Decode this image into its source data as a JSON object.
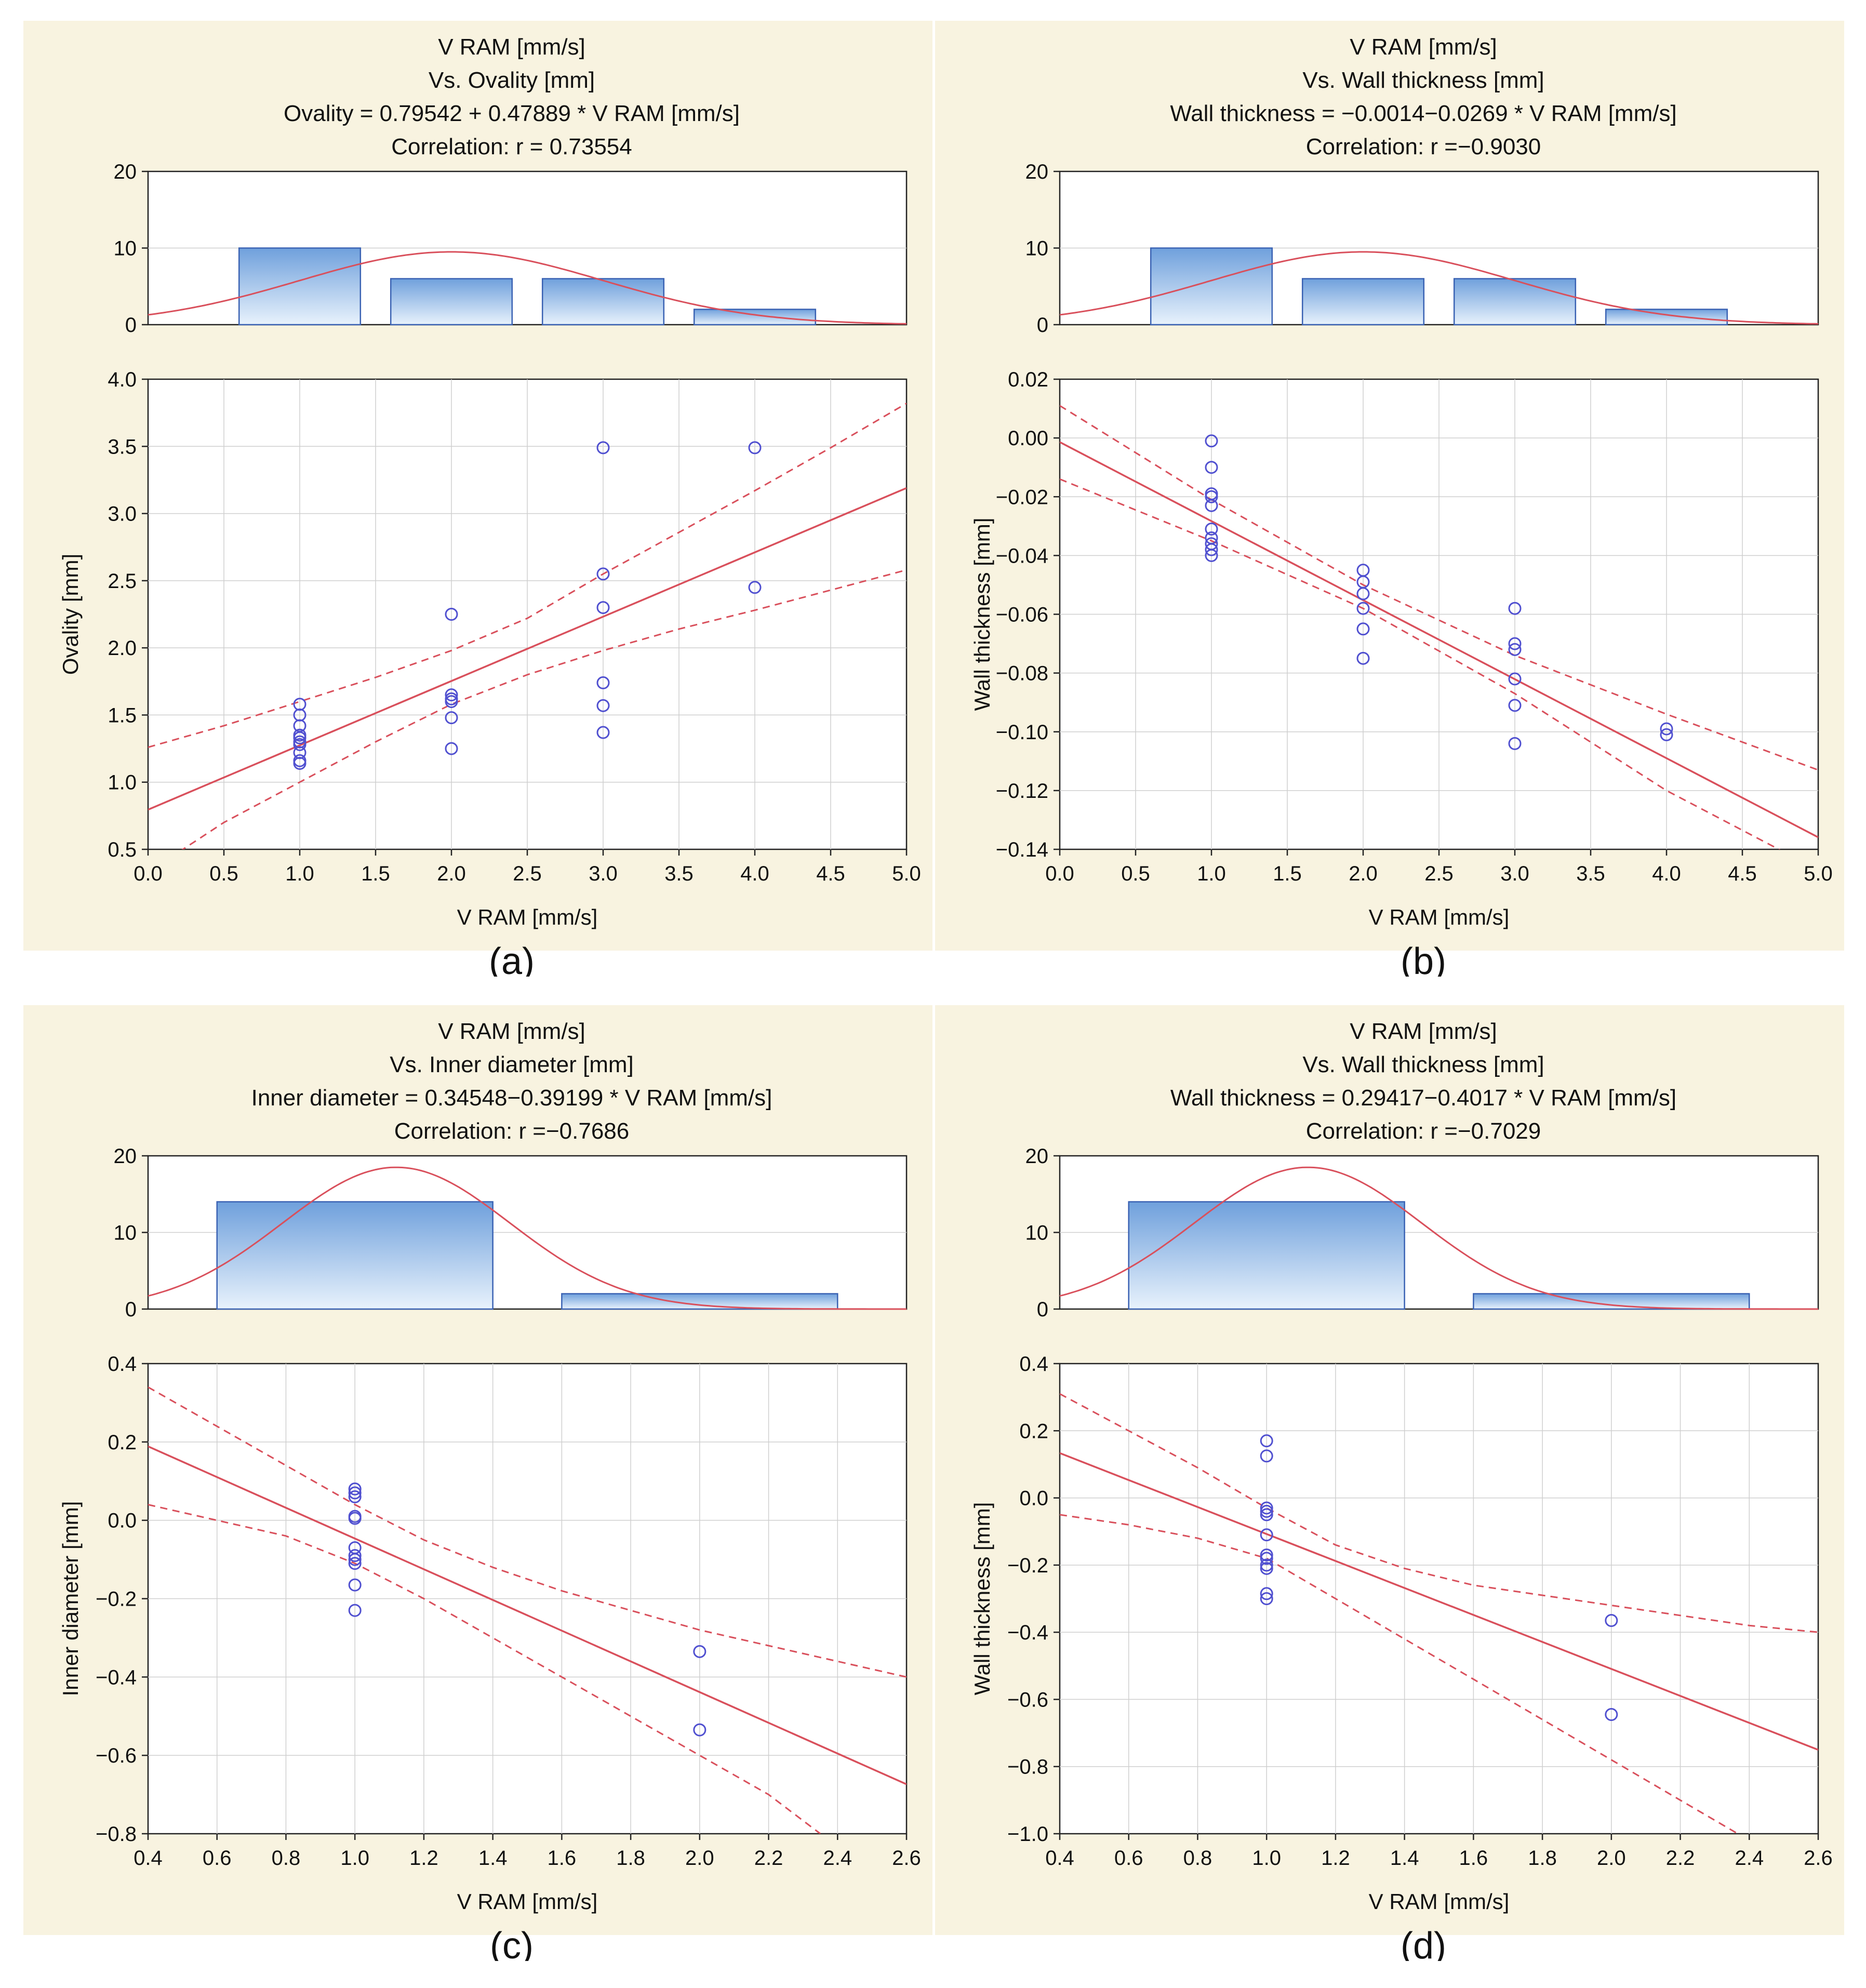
{
  "colors": {
    "background": "#f8f3e0",
    "fit": "#d9505c",
    "points": "#5050d0",
    "bar_stroke": "#3a62b3",
    "bar_top": "#6fa0dc",
    "bar_bottom": "#e8f2fc"
  },
  "chart_data": [
    {
      "id": "a",
      "type": "scatter",
      "panel_label": "(a)",
      "title_lines": [
        "V RAM [mm/s]",
        "Vs. Ovality [mm]",
        "Ovality = 0.79542 + 0.47889 * V RAM [mm/s]",
        "Correlation: r =  0.73554"
      ],
      "xlabel": "V RAM [mm/s]",
      "ylabel": "Ovality [mm]",
      "xlim": [
        0,
        5
      ],
      "ylim": [
        0.5,
        4.0
      ],
      "x_ticks": [
        "0.0",
        "0.5",
        "1.0",
        "1.5",
        "2.0",
        "2.5",
        "3.0",
        "3.5",
        "4.0",
        "4.5",
        "5.0"
      ],
      "y_ticks": [
        "0.5",
        "1.0",
        "1.5",
        "2.0",
        "2.5",
        "3.0",
        "3.5",
        "4.0"
      ],
      "hist": {
        "ylim": [
          0,
          20
        ],
        "y_ticks": [
          "0",
          "10",
          "20"
        ],
        "bars": [
          {
            "x0": 0.6,
            "x1": 1.4,
            "count": 10
          },
          {
            "x0": 1.6,
            "x1": 2.4,
            "count": 6
          },
          {
            "x0": 2.6,
            "x1": 3.4,
            "count": 6
          },
          {
            "x0": 3.6,
            "x1": 4.4,
            "count": 2
          }
        ],
        "normal": {
          "mean": 2.0,
          "sd": 1.0,
          "peak": 9.5
        }
      },
      "fit": {
        "intercept": 0.79542,
        "slope": 0.47889
      },
      "ci": {
        "upper": [
          [
            0,
            1.26
          ],
          [
            0.5,
            1.42
          ],
          [
            1,
            1.6
          ],
          [
            1.5,
            1.78
          ],
          [
            2,
            1.98
          ],
          [
            2.5,
            2.22
          ],
          [
            3,
            2.55
          ],
          [
            3.5,
            2.86
          ],
          [
            4,
            3.17
          ],
          [
            4.5,
            3.49
          ],
          [
            5,
            3.82
          ]
        ],
        "lower": [
          [
            0,
            0.33
          ],
          [
            0.5,
            0.7
          ],
          [
            1,
            1.0
          ],
          [
            1.5,
            1.3
          ],
          [
            2,
            1.58
          ],
          [
            2.5,
            1.8
          ],
          [
            3,
            1.98
          ],
          [
            3.5,
            2.14
          ],
          [
            4,
            2.28
          ],
          [
            4.5,
            2.43
          ],
          [
            5,
            2.58
          ]
        ]
      },
      "points": [
        [
          1,
          1.14
        ],
        [
          1,
          1.16
        ],
        [
          1,
          1.22
        ],
        [
          1,
          1.28
        ],
        [
          1,
          1.3
        ],
        [
          1,
          1.33
        ],
        [
          1,
          1.35
        ],
        [
          1,
          1.42
        ],
        [
          1,
          1.5
        ],
        [
          1,
          1.58
        ],
        [
          2,
          1.25
        ],
        [
          2,
          1.48
        ],
        [
          2,
          1.6
        ],
        [
          2,
          1.62
        ],
        [
          2,
          1.65
        ],
        [
          2,
          2.25
        ],
        [
          3,
          1.37
        ],
        [
          3,
          1.57
        ],
        [
          3,
          1.74
        ],
        [
          3,
          2.3
        ],
        [
          3,
          2.55
        ],
        [
          3,
          3.49
        ],
        [
          4,
          2.45
        ],
        [
          4,
          3.49
        ]
      ]
    },
    {
      "id": "b",
      "type": "scatter",
      "panel_label": "(b)",
      "title_lines": [
        "V RAM [mm/s]",
        "Vs. Wall thickness [mm]",
        "Wall thickness = −0.0014−0.0269 * V RAM [mm/s]",
        "Correlation: r =−0.9030"
      ],
      "xlabel": "V RAM [mm/s]",
      "ylabel": "Wall thickness [mm]",
      "xlim": [
        0,
        5
      ],
      "ylim": [
        -0.14,
        0.02
      ],
      "x_ticks": [
        "0.0",
        "0.5",
        "1.0",
        "1.5",
        "2.0",
        "2.5",
        "3.0",
        "3.5",
        "4.0",
        "4.5",
        "5.0"
      ],
      "y_ticks": [
        "−0.14",
        "−0.12",
        "−0.10",
        "−0.08",
        "−0.06",
        "−0.04",
        "−0.02",
        "0.00",
        "0.02"
      ],
      "hist": {
        "ylim": [
          0,
          20
        ],
        "y_ticks": [
          "0",
          "10",
          "20"
        ],
        "bars": [
          {
            "x0": 0.6,
            "x1": 1.4,
            "count": 10
          },
          {
            "x0": 1.6,
            "x1": 2.4,
            "count": 6
          },
          {
            "x0": 2.6,
            "x1": 3.4,
            "count": 6
          },
          {
            "x0": 3.6,
            "x1": 4.4,
            "count": 2
          }
        ],
        "normal": {
          "mean": 2.0,
          "sd": 1.0,
          "peak": 9.5
        }
      },
      "fit": {
        "intercept": -0.0014,
        "slope": -0.0269
      },
      "ci": {
        "upper": [
          [
            0,
            0.011
          ],
          [
            1,
            -0.021
          ],
          [
            2,
            -0.05
          ],
          [
            3,
            -0.074
          ],
          [
            4,
            -0.094
          ],
          [
            5,
            -0.113
          ]
        ],
        "lower": [
          [
            0,
            -0.014
          ],
          [
            1,
            -0.035
          ],
          [
            2,
            -0.058
          ],
          [
            3,
            -0.087
          ],
          [
            4,
            -0.12
          ],
          [
            5,
            -0.147
          ]
        ]
      },
      "points": [
        [
          1,
          -0.001
        ],
        [
          1,
          -0.01
        ],
        [
          1,
          -0.019
        ],
        [
          1,
          -0.02
        ],
        [
          1,
          -0.023
        ],
        [
          1,
          -0.031
        ],
        [
          1,
          -0.034
        ],
        [
          1,
          -0.036
        ],
        [
          1,
          -0.038
        ],
        [
          1,
          -0.04
        ],
        [
          2,
          -0.045
        ],
        [
          2,
          -0.049
        ],
        [
          2,
          -0.053
        ],
        [
          2,
          -0.058
        ],
        [
          2,
          -0.065
        ],
        [
          2,
          -0.075
        ],
        [
          3,
          -0.058
        ],
        [
          3,
          -0.07
        ],
        [
          3,
          -0.072
        ],
        [
          3,
          -0.082
        ],
        [
          3,
          -0.091
        ],
        [
          3,
          -0.104
        ],
        [
          4,
          -0.099
        ],
        [
          4,
          -0.101
        ]
      ]
    },
    {
      "id": "c",
      "type": "scatter",
      "panel_label": "(c)",
      "title_lines": [
        "V RAM [mm/s]",
        "Vs. Inner diameter [mm]",
        "Inner diameter = 0.34548−0.39199 * V RAM [mm/s]",
        "Correlation: r =−0.7686"
      ],
      "xlabel": "V RAM [mm/s]",
      "ylabel": "Inner diameter [mm]",
      "xlim": [
        0.4,
        2.6
      ],
      "ylim": [
        -0.8,
        0.4
      ],
      "x_ticks": [
        "0.4",
        "0.6",
        "0.8",
        "1.0",
        "1.2",
        "1.4",
        "1.6",
        "1.8",
        "2.0",
        "2.2",
        "2.4",
        "2.6"
      ],
      "y_ticks": [
        "−0.8",
        "−0.6",
        "−0.4",
        "−0.2",
        "0.0",
        "0.2",
        "0.4"
      ],
      "hist": {
        "ylim": [
          0,
          20
        ],
        "y_ticks": [
          "0",
          "10",
          "20"
        ],
        "bars": [
          {
            "x0": 0.6,
            "x1": 1.4,
            "count": 14
          },
          {
            "x0": 1.6,
            "x1": 2.4,
            "count": 2
          }
        ],
        "normal": {
          "mean": 1.12,
          "sd": 0.33,
          "peak": 18.5
        }
      },
      "fit": {
        "intercept": 0.34548,
        "slope": -0.39199
      },
      "ci": {
        "upper": [
          [
            0.4,
            0.34
          ],
          [
            0.6,
            0.24
          ],
          [
            0.8,
            0.14
          ],
          [
            1.0,
            0.04
          ],
          [
            1.2,
            -0.05
          ],
          [
            1.4,
            -0.12
          ],
          [
            1.6,
            -0.18
          ],
          [
            1.8,
            -0.23
          ],
          [
            2.0,
            -0.28
          ],
          [
            2.2,
            -0.32
          ],
          [
            2.4,
            -0.36
          ],
          [
            2.6,
            -0.4
          ]
        ],
        "lower": [
          [
            0.4,
            0.04
          ],
          [
            0.6,
            0.0
          ],
          [
            0.8,
            -0.04
          ],
          [
            1.0,
            -0.11
          ],
          [
            1.2,
            -0.2
          ],
          [
            1.4,
            -0.3
          ],
          [
            1.6,
            -0.4
          ],
          [
            1.8,
            -0.5
          ],
          [
            2.0,
            -0.6
          ],
          [
            2.2,
            -0.7
          ],
          [
            2.35,
            -0.8
          ]
        ]
      },
      "points": [
        [
          1,
          0.08
        ],
        [
          1,
          0.07
        ],
        [
          1,
          0.06
        ],
        [
          1,
          0.01
        ],
        [
          1,
          0.005
        ],
        [
          1,
          -0.07
        ],
        [
          1,
          -0.09
        ],
        [
          1,
          -0.1
        ],
        [
          1,
          -0.11
        ],
        [
          1,
          -0.165
        ],
        [
          1,
          -0.23
        ],
        [
          2,
          -0.335
        ],
        [
          2,
          -0.535
        ]
      ]
    },
    {
      "id": "d",
      "type": "scatter",
      "panel_label": "(d)",
      "title_lines": [
        "V RAM [mm/s]",
        "Vs. Wall thickness [mm]",
        "Wall thickness = 0.29417−0.4017 * V RAM [mm/s]",
        "Correlation: r =−0.7029"
      ],
      "xlabel": "V RAM [mm/s]",
      "ylabel": "Wall thickness [mm]",
      "xlim": [
        0.4,
        2.6
      ],
      "ylim": [
        -1.0,
        0.4
      ],
      "x_ticks": [
        "0.4",
        "0.6",
        "0.8",
        "1.0",
        "1.2",
        "1.4",
        "1.6",
        "1.8",
        "2.0",
        "2.2",
        "2.4",
        "2.6"
      ],
      "y_ticks": [
        "−1.0",
        "−0.8",
        "−0.6",
        "−0.4",
        "−0.2",
        "0.0",
        "0.2",
        "0.4"
      ],
      "hist": {
        "ylim": [
          0,
          20
        ],
        "y_ticks": [
          "0",
          "10",
          "20"
        ],
        "bars": [
          {
            "x0": 0.6,
            "x1": 1.4,
            "count": 14
          },
          {
            "x0": 1.6,
            "x1": 2.4,
            "count": 2
          }
        ],
        "normal": {
          "mean": 1.12,
          "sd": 0.33,
          "peak": 18.5
        }
      },
      "fit": {
        "intercept": 0.29417,
        "slope": -0.4017
      },
      "ci": {
        "upper": [
          [
            0.4,
            0.31
          ],
          [
            0.6,
            0.2
          ],
          [
            0.8,
            0.09
          ],
          [
            1.0,
            -0.03
          ],
          [
            1.2,
            -0.14
          ],
          [
            1.4,
            -0.21
          ],
          [
            1.6,
            -0.26
          ],
          [
            1.8,
            -0.29
          ],
          [
            2.0,
            -0.32
          ],
          [
            2.2,
            -0.35
          ],
          [
            2.4,
            -0.38
          ],
          [
            2.6,
            -0.4
          ]
        ],
        "lower": [
          [
            0.4,
            -0.05
          ],
          [
            0.6,
            -0.08
          ],
          [
            0.8,
            -0.12
          ],
          [
            1.0,
            -0.18
          ],
          [
            1.2,
            -0.3
          ],
          [
            1.4,
            -0.42
          ],
          [
            1.6,
            -0.54
          ],
          [
            1.8,
            -0.66
          ],
          [
            2.0,
            -0.78
          ],
          [
            2.2,
            -0.9
          ],
          [
            2.4,
            -1.02
          ]
        ]
      },
      "points": [
        [
          1,
          0.17
        ],
        [
          1,
          0.125
        ],
        [
          1,
          -0.03
        ],
        [
          1,
          -0.04
        ],
        [
          1,
          -0.05
        ],
        [
          1,
          -0.11
        ],
        [
          1,
          -0.17
        ],
        [
          1,
          -0.18
        ],
        [
          1,
          -0.2
        ],
        [
          1,
          -0.21
        ],
        [
          1,
          -0.285
        ],
        [
          1,
          -0.3
        ],
        [
          2,
          -0.365
        ],
        [
          2,
          -0.645
        ]
      ]
    }
  ]
}
